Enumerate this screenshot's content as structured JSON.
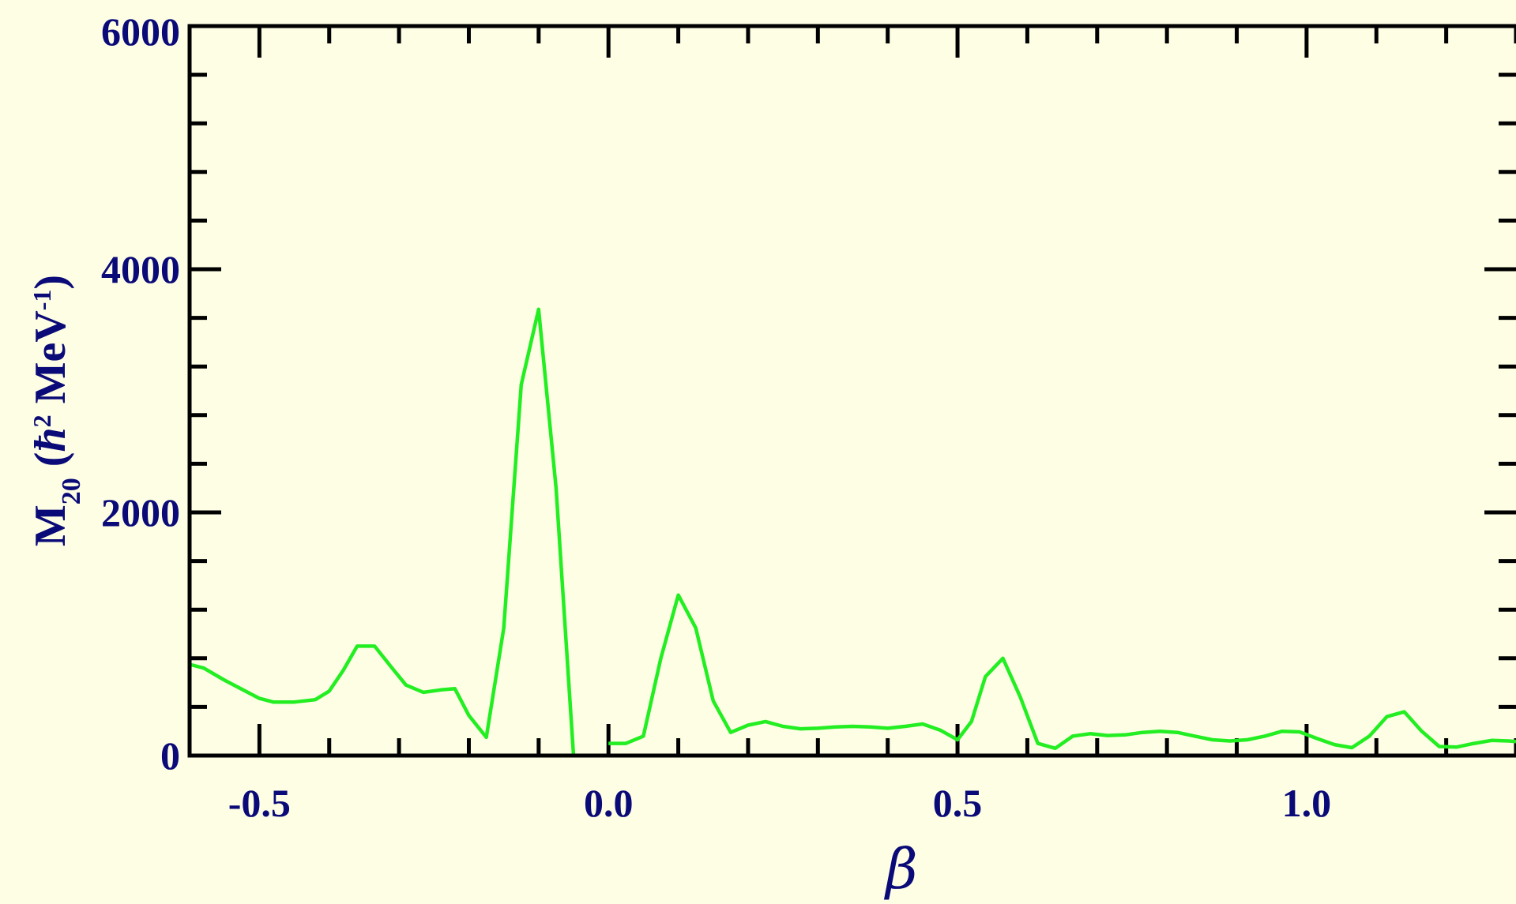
{
  "chart_data": {
    "type": "line",
    "title": "",
    "xlabel": "β",
    "ylabel": {
      "main": "M",
      "sub": "20",
      "paren_open": " (",
      "hbar": "ħ",
      "sup": "2",
      "unit": " MeV",
      "unit_sup": "-1",
      "paren_close": ")"
    },
    "xlim": [
      -0.6,
      1.3
    ],
    "ylim": [
      0,
      6000
    ],
    "x_major_ticks": [
      -0.5,
      0.0,
      0.5,
      1.0
    ],
    "x_tick_labels": [
      "-0.5",
      "0.0",
      "0.5",
      "1.0"
    ],
    "x_minor_step": 0.1,
    "y_major_ticks": [
      0,
      2000,
      4000,
      6000
    ],
    "y_tick_labels": [
      "0",
      "2000",
      "4000",
      "6000"
    ],
    "y_minor_step": 400,
    "grid": false,
    "line_color": "#22EE22",
    "axis_color": "#000000",
    "text_color": "#0A0A78",
    "background": "#FEFEE4",
    "series": [
      {
        "segments": [
          [
            [
              -0.6,
              750
            ],
            [
              -0.58,
              720
            ],
            [
              -0.55,
              620
            ],
            [
              -0.52,
              530
            ],
            [
              -0.5,
              470
            ],
            [
              -0.48,
              440
            ],
            [
              -0.45,
              440
            ],
            [
              -0.42,
              460
            ],
            [
              -0.4,
              530
            ],
            [
              -0.38,
              700
            ],
            [
              -0.36,
              900
            ],
            [
              -0.335,
              900
            ],
            [
              -0.31,
              720
            ],
            [
              -0.29,
              580
            ],
            [
              -0.265,
              520
            ],
            [
              -0.24,
              540
            ],
            [
              -0.22,
              550
            ],
            [
              -0.2,
              330
            ],
            [
              -0.175,
              150
            ],
            [
              -0.15,
              1050
            ],
            [
              -0.125,
              3050
            ],
            [
              -0.1,
              3670
            ],
            [
              -0.075,
              2200
            ],
            [
              -0.05,
              0
            ]
          ],
          [
            [
              0.0,
              100
            ],
            [
              0.025,
              100
            ],
            [
              0.05,
              160
            ],
            [
              0.075,
              800
            ],
            [
              0.1,
              1320
            ],
            [
              0.125,
              1050
            ],
            [
              0.15,
              450
            ],
            [
              0.175,
              190
            ],
            [
              0.2,
              250
            ],
            [
              0.225,
              280
            ],
            [
              0.25,
              240
            ],
            [
              0.275,
              220
            ],
            [
              0.3,
              225
            ],
            [
              0.325,
              235
            ],
            [
              0.35,
              240
            ],
            [
              0.375,
              235
            ],
            [
              0.4,
              225
            ],
            [
              0.425,
              240
            ],
            [
              0.45,
              260
            ],
            [
              0.475,
              210
            ],
            [
              0.5,
              130
            ],
            [
              0.52,
              280
            ],
            [
              0.54,
              650
            ],
            [
              0.565,
              800
            ],
            [
              0.59,
              480
            ],
            [
              0.615,
              100
            ],
            [
              0.64,
              60
            ],
            [
              0.665,
              160
            ],
            [
              0.69,
              180
            ],
            [
              0.715,
              165
            ],
            [
              0.74,
              170
            ],
            [
              0.765,
              190
            ],
            [
              0.79,
              200
            ],
            [
              0.815,
              190
            ],
            [
              0.84,
              160
            ],
            [
              0.865,
              130
            ],
            [
              0.89,
              120
            ],
            [
              0.915,
              130
            ],
            [
              0.94,
              160
            ],
            [
              0.965,
              200
            ],
            [
              0.99,
              195
            ],
            [
              1.015,
              140
            ],
            [
              1.04,
              90
            ],
            [
              1.065,
              65
            ],
            [
              1.09,
              160
            ],
            [
              1.115,
              320
            ],
            [
              1.14,
              360
            ],
            [
              1.165,
              200
            ],
            [
              1.19,
              75
            ],
            [
              1.215,
              70
            ],
            [
              1.24,
              100
            ],
            [
              1.265,
              125
            ],
            [
              1.29,
              120
            ],
            [
              1.3,
              115
            ]
          ]
        ]
      }
    ]
  }
}
